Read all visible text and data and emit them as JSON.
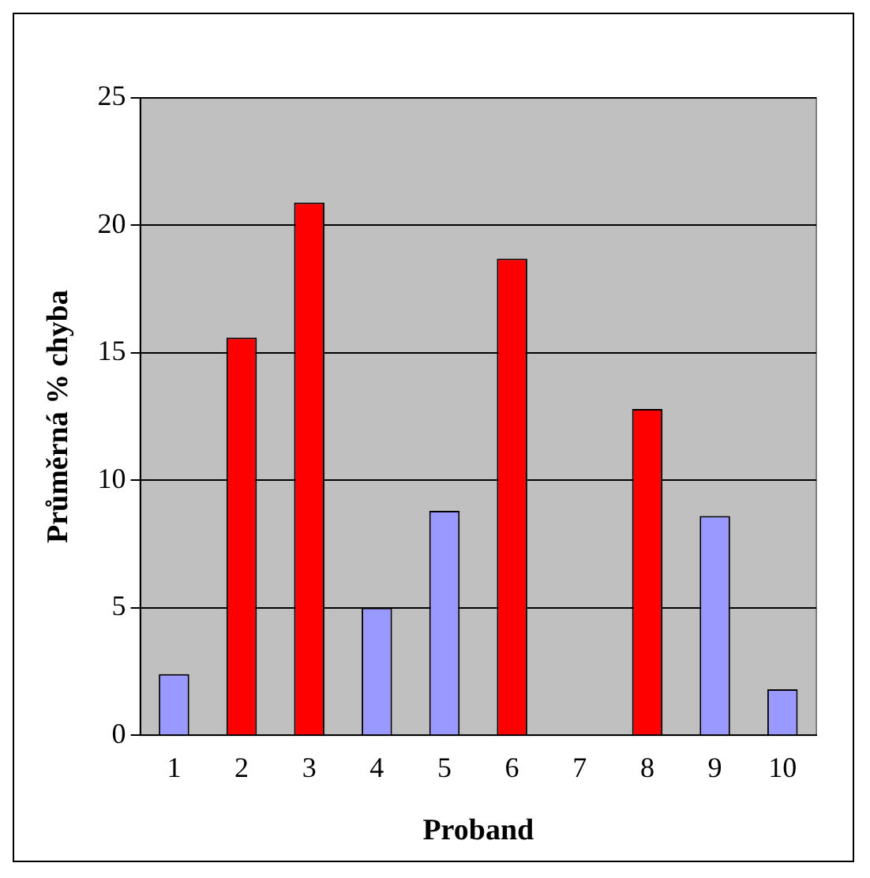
{
  "chart_data": {
    "type": "bar",
    "xlabel": "Proband",
    "ylabel": "Průměrná % chyba",
    "categories": [
      "1",
      "2",
      "3",
      "4",
      "5",
      "6",
      "7",
      "8",
      "9",
      "10"
    ],
    "values": [
      2.4,
      15.6,
      20.9,
      5.0,
      8.8,
      18.7,
      0,
      12.8,
      8.6,
      1.8
    ],
    "colors": [
      "#9999ff",
      "#ff0000",
      "#ff0000",
      "#9999ff",
      "#9999ff",
      "#ff0000",
      "#9999ff",
      "#ff0000",
      "#9999ff",
      "#9999ff"
    ],
    "ylim": [
      0,
      25
    ],
    "yticks": [
      0,
      5,
      10,
      15,
      20,
      25
    ],
    "grid": "y",
    "legend": false
  }
}
